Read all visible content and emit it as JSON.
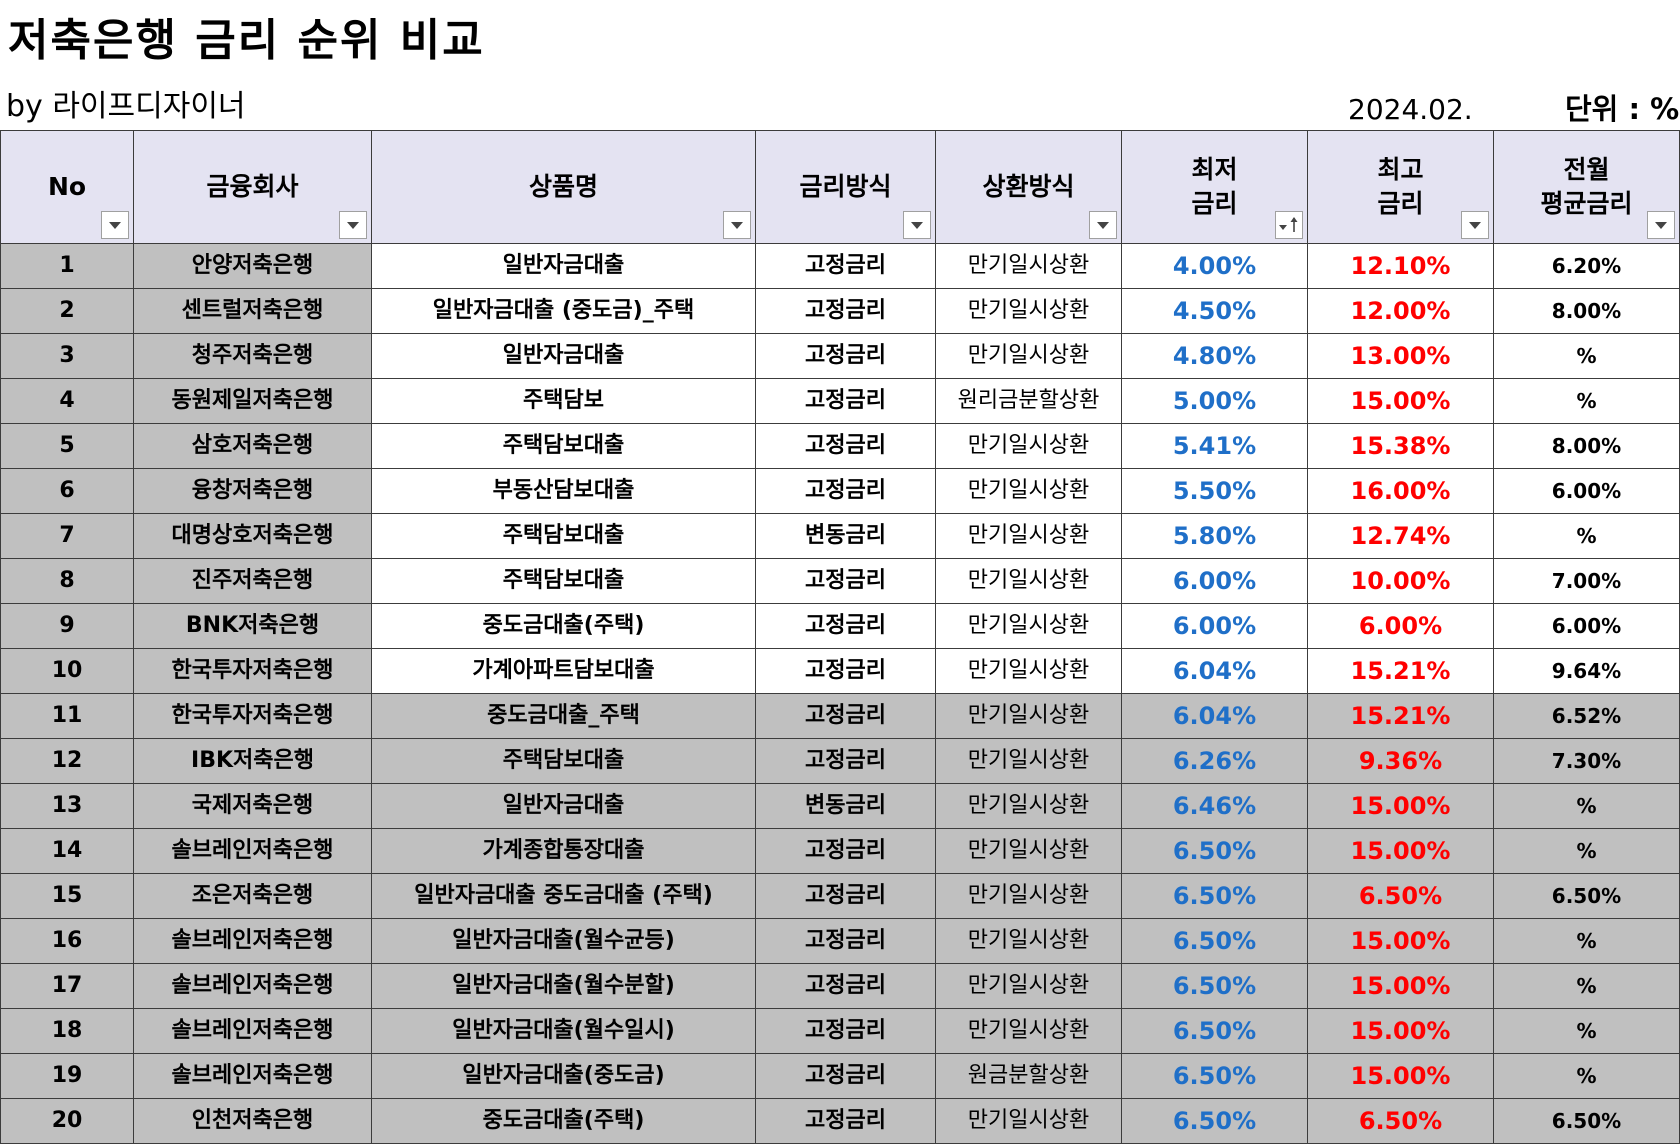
{
  "page": {
    "title": "저축은행 금리 순위 비교",
    "byline": "by 라이프디자이너",
    "date": "2024.02.",
    "unit": "단위 : %"
  },
  "icons": {
    "filter": "dropdown-filter-icon",
    "sorted_filter": "sort-ascending-filter-icon"
  },
  "colors": {
    "header_bg": "#e4e3f2",
    "gray_row": "#c0c0c0",
    "min_rate": "#1f6fc8",
    "max_rate": "#ff0000"
  },
  "table": {
    "headers": [
      {
        "line1": "No",
        "line2": ""
      },
      {
        "line1": "금융회사",
        "line2": ""
      },
      {
        "line1": "상품명",
        "line2": ""
      },
      {
        "line1": "금리방식",
        "line2": ""
      },
      {
        "line1": "상환방식",
        "line2": ""
      },
      {
        "line1": "최저",
        "line2": "금리"
      },
      {
        "line1": "최고",
        "line2": "금리"
      },
      {
        "line1": "전월",
        "line2": "평균금리"
      }
    ],
    "rows": [
      {
        "no": "1",
        "company": "안양저축은행",
        "product": "일반자금대출",
        "rate_type": "고정금리",
        "repayment": "만기일시상환",
        "min": "4.00%",
        "max": "12.10%",
        "avg": "6.20%",
        "shade": "white"
      },
      {
        "no": "2",
        "company": "센트럴저축은행",
        "product": "일반자금대출 (중도금)_주택",
        "rate_type": "고정금리",
        "repayment": "만기일시상환",
        "min": "4.50%",
        "max": "12.00%",
        "avg": "8.00%",
        "shade": "white"
      },
      {
        "no": "3",
        "company": "청주저축은행",
        "product": "일반자금대출",
        "rate_type": "고정금리",
        "repayment": "만기일시상환",
        "min": "4.80%",
        "max": "13.00%",
        "avg": "%",
        "shade": "white"
      },
      {
        "no": "4",
        "company": "동원제일저축은행",
        "product": "주택담보",
        "rate_type": "고정금리",
        "repayment": "원리금분할상환",
        "min": "5.00%",
        "max": "15.00%",
        "avg": "%",
        "shade": "white"
      },
      {
        "no": "5",
        "company": "삼호저축은행",
        "product": "주택담보대출",
        "rate_type": "고정금리",
        "repayment": "만기일시상환",
        "min": "5.41%",
        "max": "15.38%",
        "avg": "8.00%",
        "shade": "white"
      },
      {
        "no": "6",
        "company": "융창저축은행",
        "product": "부동산담보대출",
        "rate_type": "고정금리",
        "repayment": "만기일시상환",
        "min": "5.50%",
        "max": "16.00%",
        "avg": "6.00%",
        "shade": "white"
      },
      {
        "no": "7",
        "company": "대명상호저축은행",
        "product": "주택담보대출",
        "rate_type": "변동금리",
        "repayment": "만기일시상환",
        "min": "5.80%",
        "max": "12.74%",
        "avg": "%",
        "shade": "white"
      },
      {
        "no": "8",
        "company": "진주저축은행",
        "product": "주택담보대출",
        "rate_type": "고정금리",
        "repayment": "만기일시상환",
        "min": "6.00%",
        "max": "10.00%",
        "avg": "7.00%",
        "shade": "white"
      },
      {
        "no": "9",
        "company": "BNK저축은행",
        "product": "중도금대출(주택)",
        "rate_type": "고정금리",
        "repayment": "만기일시상환",
        "min": "6.00%",
        "max": "6.00%",
        "avg": "6.00%",
        "shade": "white"
      },
      {
        "no": "10",
        "company": "한국투자저축은행",
        "product": "가계아파트담보대출",
        "rate_type": "고정금리",
        "repayment": "만기일시상환",
        "min": "6.04%",
        "max": "15.21%",
        "avg": "9.64%",
        "shade": "white"
      },
      {
        "no": "11",
        "company": "한국투자저축은행",
        "product": "중도금대출_주택",
        "rate_type": "고정금리",
        "repayment": "만기일시상환",
        "min": "6.04%",
        "max": "15.21%",
        "avg": "6.52%",
        "shade": "gray"
      },
      {
        "no": "12",
        "company": "IBK저축은행",
        "product": "주택담보대출",
        "rate_type": "고정금리",
        "repayment": "만기일시상환",
        "min": "6.26%",
        "max": "9.36%",
        "avg": "7.30%",
        "shade": "gray"
      },
      {
        "no": "13",
        "company": "국제저축은행",
        "product": "일반자금대출",
        "rate_type": "변동금리",
        "repayment": "만기일시상환",
        "min": "6.46%",
        "max": "15.00%",
        "avg": "%",
        "shade": "gray"
      },
      {
        "no": "14",
        "company": "솔브레인저축은행",
        "product": "가계종합통장대출",
        "rate_type": "고정금리",
        "repayment": "만기일시상환",
        "min": "6.50%",
        "max": "15.00%",
        "avg": "%",
        "shade": "gray"
      },
      {
        "no": "15",
        "company": "조은저축은행",
        "product": "일반자금대출 중도금대출 (주택)",
        "rate_type": "고정금리",
        "repayment": "만기일시상환",
        "min": "6.50%",
        "max": "6.50%",
        "avg": "6.50%",
        "shade": "gray"
      },
      {
        "no": "16",
        "company": "솔브레인저축은행",
        "product": "일반자금대출(월수균등)",
        "rate_type": "고정금리",
        "repayment": "만기일시상환",
        "min": "6.50%",
        "max": "15.00%",
        "avg": "%",
        "shade": "gray"
      },
      {
        "no": "17",
        "company": "솔브레인저축은행",
        "product": "일반자금대출(월수분할)",
        "rate_type": "고정금리",
        "repayment": "만기일시상환",
        "min": "6.50%",
        "max": "15.00%",
        "avg": "%",
        "shade": "gray"
      },
      {
        "no": "18",
        "company": "솔브레인저축은행",
        "product": "일반자금대출(월수일시)",
        "rate_type": "고정금리",
        "repayment": "만기일시상환",
        "min": "6.50%",
        "max": "15.00%",
        "avg": "%",
        "shade": "gray"
      },
      {
        "no": "19",
        "company": "솔브레인저축은행",
        "product": "일반자금대출(중도금)",
        "rate_type": "고정금리",
        "repayment": "원금분할상환",
        "min": "6.50%",
        "max": "15.00%",
        "avg": "%",
        "shade": "gray"
      },
      {
        "no": "20",
        "company": "인천저축은행",
        "product": "중도금대출(주택)",
        "rate_type": "고정금리",
        "repayment": "만기일시상환",
        "min": "6.50%",
        "max": "6.50%",
        "avg": "6.50%",
        "shade": "gray"
      }
    ]
  }
}
